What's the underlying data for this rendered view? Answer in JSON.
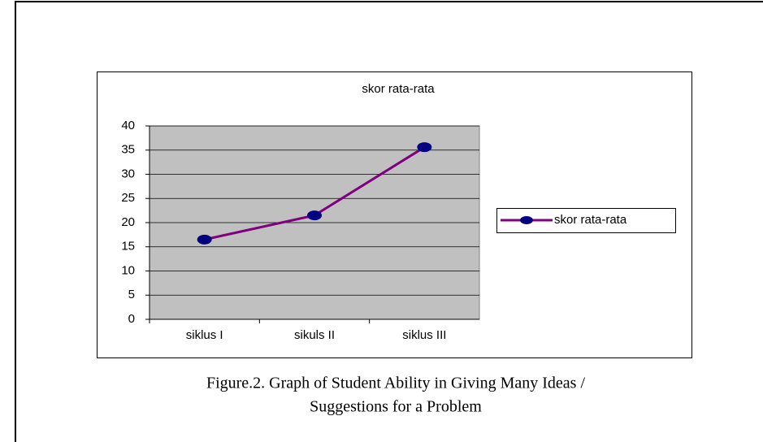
{
  "chart_data": {
    "type": "line",
    "title": "skor rata-rata",
    "categories": [
      "siklus I",
      "sikuls II",
      "siklus III"
    ],
    "series": [
      {
        "name": "skor rata-rata",
        "color": "#800080",
        "values": [
          16.5,
          21.5,
          35.6
        ]
      }
    ],
    "ylim": [
      0,
      40
    ],
    "yticks": [
      0,
      5,
      10,
      15,
      20,
      25,
      30,
      35,
      40
    ],
    "grid": true,
    "legend": "right"
  },
  "caption": [
    "Figure.2. Graph of Student Ability in Giving Many Ideas /",
    "Suggestions for a Problem"
  ]
}
